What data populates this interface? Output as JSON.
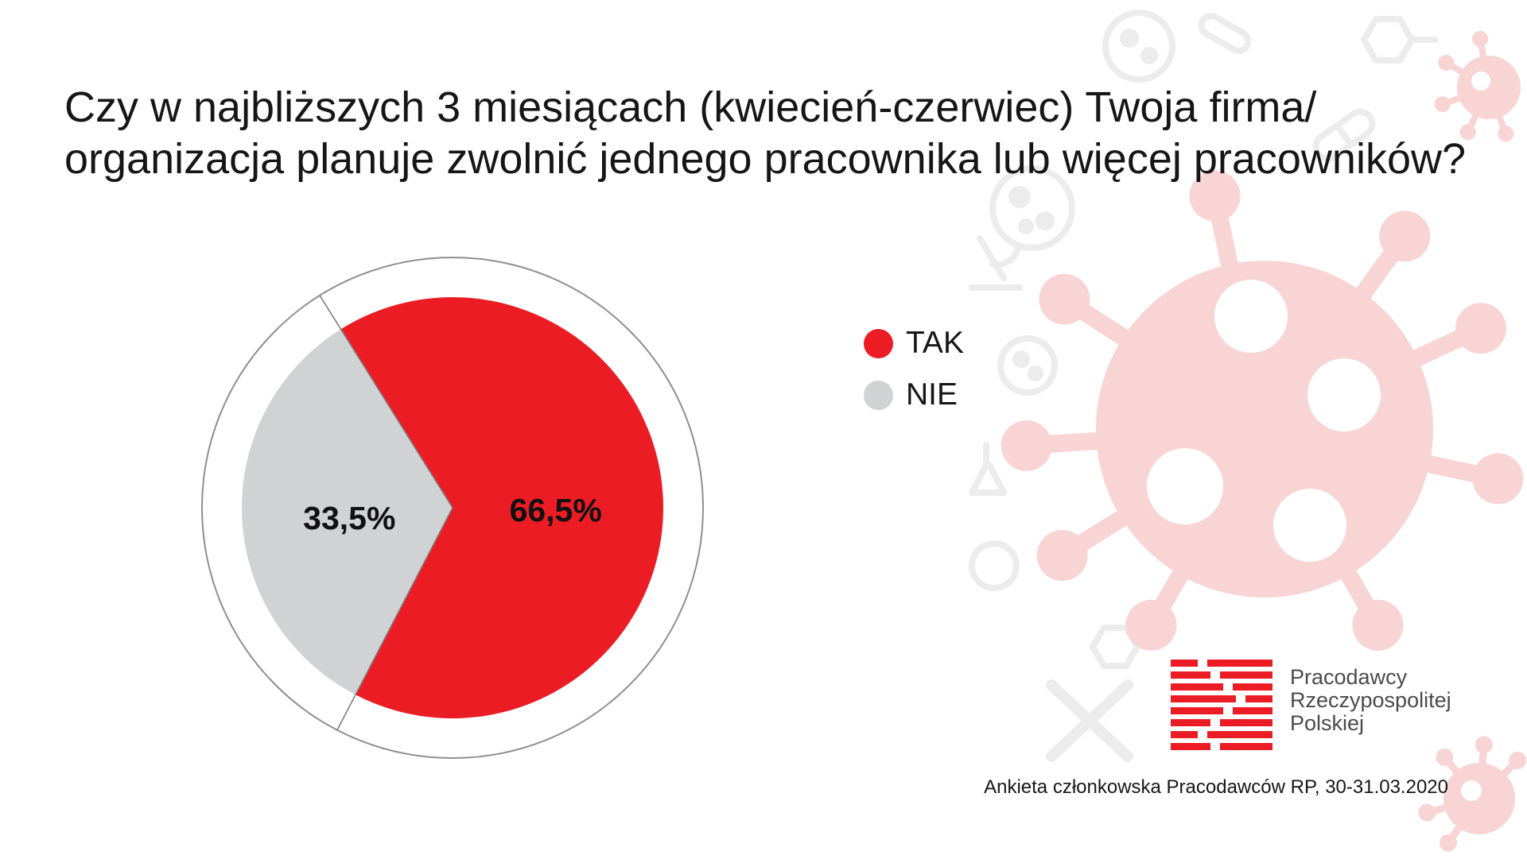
{
  "chart_data": {
    "type": "pie",
    "title": [
      "Czy w najbliższych 3 miesiącach (kwiecień-czerwiec) Twoja firma/",
      "organizacja planuje zwolnić jednego pracownika lub więcej pracowników?"
    ],
    "categories": [
      "TAK",
      "NIE"
    ],
    "values": [
      66.5,
      33.5
    ],
    "value_labels": [
      "66,5%",
      "33,5%"
    ],
    "colors": [
      "#ec1c24",
      "#d1d2d4"
    ],
    "legend_placement": "right"
  },
  "source_note": "Ankieta członkowska Pracodawców RP, 30-31.03.2020",
  "logo": {
    "name_lines": [
      "Pracodawcy",
      "Rzeczypospolitej",
      "Polskiej"
    ],
    "stripe_color": "#ec1c24"
  },
  "decoration": {
    "virus_color": "#f8d4d5",
    "icon_color": "#ececec"
  }
}
